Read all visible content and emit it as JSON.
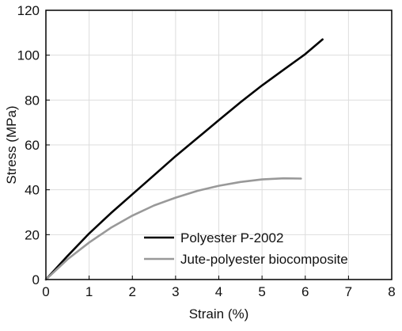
{
  "chart_data": {
    "type": "line",
    "xlabel": "Strain (%)",
    "ylabel": "Stress (MPa)",
    "xlim": [
      0,
      8
    ],
    "ylim": [
      0,
      120
    ],
    "x_ticks": [
      0,
      1,
      2,
      3,
      4,
      5,
      6,
      7,
      8
    ],
    "y_ticks": [
      0,
      20,
      40,
      60,
      80,
      100,
      120
    ],
    "x_tick_labels": [
      "0",
      "1",
      "2",
      "3",
      "4",
      "5",
      "6",
      "7",
      "8"
    ],
    "y_tick_labels": [
      "0",
      "20",
      "40",
      "60",
      "80",
      "100",
      "120"
    ],
    "grid": true,
    "legend_position": "bottom-right",
    "series": [
      {
        "name": "Polyester P-2002",
        "color": "#000000",
        "x": [
          0,
          0.5,
          1,
          1.5,
          2,
          2.5,
          3,
          3.5,
          4,
          4.5,
          5,
          5.5,
          6,
          6.4
        ],
        "y": [
          0,
          10.5,
          20.5,
          29.5,
          38,
          46.5,
          55,
          63,
          71,
          79,
          86.5,
          93.5,
          100.5,
          107
        ]
      },
      {
        "name": "Jute-polyester biocomposite",
        "color": "#999999",
        "x": [
          0,
          0.5,
          1,
          1.5,
          2,
          2.5,
          3,
          3.5,
          4,
          4.5,
          5,
          5.5,
          5.9
        ],
        "y": [
          0,
          9,
          16.5,
          23,
          28.5,
          33,
          36.5,
          39.5,
          41.8,
          43.5,
          44.6,
          45.1,
          45
        ]
      }
    ]
  }
}
